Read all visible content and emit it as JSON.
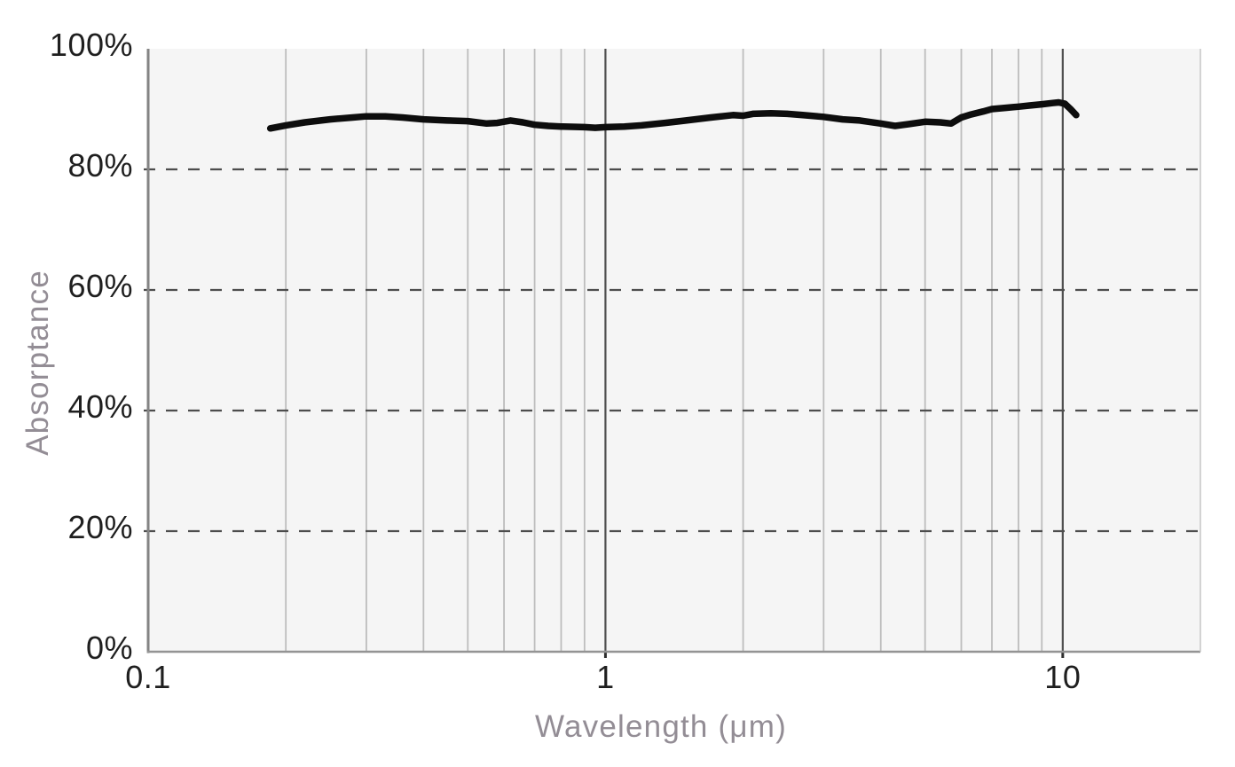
{
  "chart_data": {
    "type": "line",
    "title": "",
    "xlabel": "Wavelength (μm)",
    "ylabel": "Absorptance",
    "x_scale": "log",
    "xlim": [
      0.1,
      20
    ],
    "ylim": [
      0,
      100
    ],
    "grid": "vertical solid minor gridlines; horizontal dashed gridlines at 20/40/60/80%",
    "legend": "none",
    "x_ticks": [
      {
        "value": 0.1,
        "label": "0.1"
      },
      {
        "value": 1,
        "label": "1"
      },
      {
        "value": 10,
        "label": "10"
      }
    ],
    "x_minor_gridlines": [
      0.2,
      0.3,
      0.4,
      0.5,
      0.6,
      0.7,
      0.8,
      0.9,
      2,
      3,
      4,
      5,
      6,
      7,
      8,
      9
    ],
    "y_ticks": [
      {
        "value": 0,
        "label": "0%"
      },
      {
        "value": 20,
        "label": "20%"
      },
      {
        "value": 40,
        "label": "40%"
      },
      {
        "value": 60,
        "label": "60%"
      },
      {
        "value": 80,
        "label": "80%"
      },
      {
        "value": 100,
        "label": "100%"
      }
    ],
    "y_dashed_gridlines": [
      20,
      40,
      60,
      80
    ],
    "series": [
      {
        "name": "Absorptance",
        "color": "#0d0d0d",
        "points": [
          [
            0.185,
            86.8
          ],
          [
            0.2,
            87.3
          ],
          [
            0.22,
            87.8
          ],
          [
            0.25,
            88.3
          ],
          [
            0.28,
            88.6
          ],
          [
            0.3,
            88.8
          ],
          [
            0.33,
            88.8
          ],
          [
            0.36,
            88.6
          ],
          [
            0.4,
            88.3
          ],
          [
            0.45,
            88.1
          ],
          [
            0.5,
            88.0
          ],
          [
            0.55,
            87.6
          ],
          [
            0.58,
            87.7
          ],
          [
            0.62,
            88.1
          ],
          [
            0.66,
            87.8
          ],
          [
            0.7,
            87.4
          ],
          [
            0.75,
            87.2
          ],
          [
            0.8,
            87.1
          ],
          [
            0.9,
            87.0
          ],
          [
            0.95,
            86.9
          ],
          [
            1.0,
            87.0
          ],
          [
            1.1,
            87.1
          ],
          [
            1.2,
            87.3
          ],
          [
            1.35,
            87.7
          ],
          [
            1.5,
            88.1
          ],
          [
            1.7,
            88.6
          ],
          [
            1.9,
            89.0
          ],
          [
            2.0,
            88.9
          ],
          [
            2.1,
            89.2
          ],
          [
            2.3,
            89.3
          ],
          [
            2.5,
            89.2
          ],
          [
            2.7,
            89.0
          ],
          [
            3.0,
            88.7
          ],
          [
            3.3,
            88.3
          ],
          [
            3.6,
            88.1
          ],
          [
            4.0,
            87.6
          ],
          [
            4.3,
            87.2
          ],
          [
            4.6,
            87.5
          ],
          [
            5.0,
            87.9
          ],
          [
            5.4,
            87.8
          ],
          [
            5.7,
            87.6
          ],
          [
            6.0,
            88.6
          ],
          [
            6.3,
            89.1
          ],
          [
            6.7,
            89.6
          ],
          [
            7.0,
            90.0
          ],
          [
            7.5,
            90.2
          ],
          [
            8.0,
            90.4
          ],
          [
            8.5,
            90.6
          ],
          [
            9.0,
            90.8
          ],
          [
            9.5,
            91.0
          ],
          [
            9.8,
            91.1
          ],
          [
            10.1,
            90.9
          ],
          [
            10.4,
            90.0
          ],
          [
            10.7,
            89.0
          ]
        ]
      }
    ]
  },
  "colors": {
    "page_background": "#ffffff",
    "plot_background": "#f5f5f5",
    "minor_gridline": "#bdbdbd",
    "major_gridline": "#4f4f4f",
    "dashed_gridline": "#4d4d4d",
    "axis_line_left": "#848484",
    "axis_line_bottom": "#949494",
    "plot_border_right": "#c6c6c6",
    "tick_mark": "#2e2e2e",
    "tick_text": "#1f1f1f",
    "axis_title_text": "#938d95",
    "line": "#0d0d0d"
  }
}
